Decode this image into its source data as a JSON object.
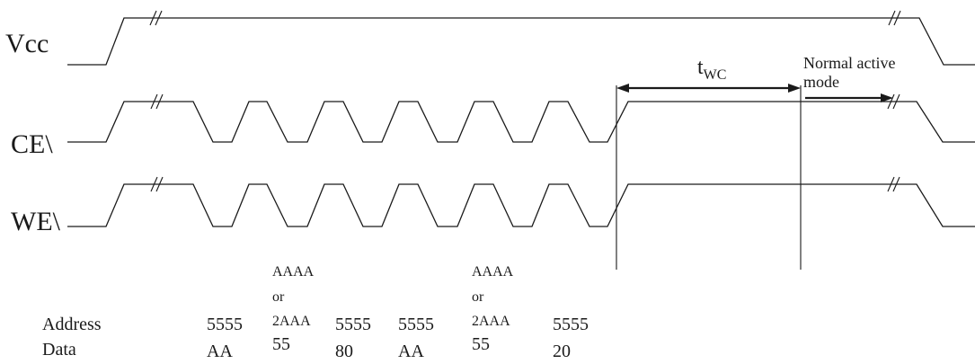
{
  "signals": {
    "vcc": "Vcc",
    "ce": "CE\\",
    "we": "WE\\"
  },
  "timing": {
    "twc_main": "t",
    "twc_sub": "WC",
    "normal_line1": "Normal active",
    "normal_line2": "mode"
  },
  "table": {
    "address_label": "Address",
    "data_label": "Data",
    "cycles": [
      {
        "address": "5555",
        "data": "AA"
      },
      {
        "address_top": "AAAA",
        "address_mid": "or",
        "address": "2AAA",
        "data": "55"
      },
      {
        "address": "5555",
        "data": "80"
      },
      {
        "address": "5555",
        "data": "AA"
      },
      {
        "address_top": "AAAA",
        "address_mid": "or",
        "address": "2AAA",
        "data": "55"
      },
      {
        "address": "5555",
        "data": "20"
      }
    ]
  }
}
